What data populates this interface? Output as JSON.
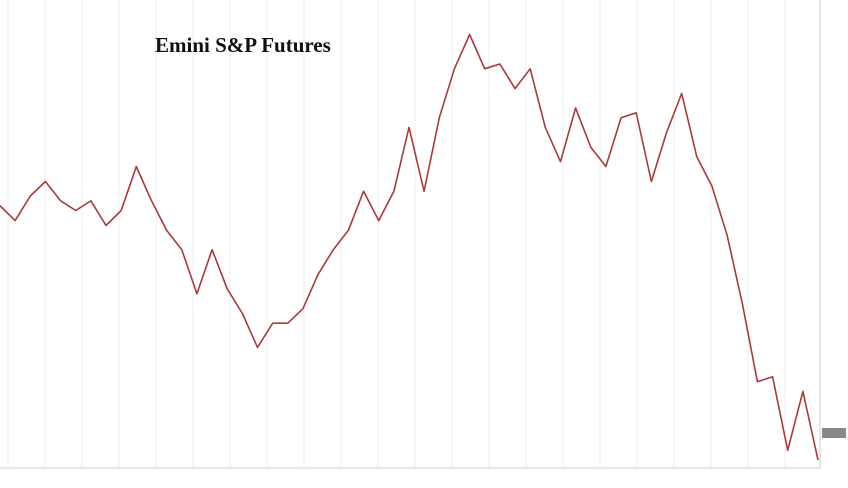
{
  "chart_data": {
    "type": "line",
    "title": "Emini S&P Futures",
    "values": [
      57.8,
      54.4,
      60,
      63.3,
      58.9,
      56.7,
      58.9,
      53.3,
      56.7,
      66.7,
      58.9,
      52.2,
      47.8,
      37.8,
      47.8,
      38.9,
      33.3,
      25.6,
      31.1,
      31.1,
      34.4,
      42.2,
      47.8,
      52.2,
      61.1,
      54.4,
      61.1,
      75.6,
      61.1,
      77.8,
      88.9,
      96.7,
      88.9,
      90,
      84.4,
      88.9,
      75.6,
      67.8,
      80,
      71.1,
      66.7,
      77.8,
      78.9,
      63.3,
      74.4,
      83.3,
      68.9,
      62.2,
      51.1,
      35.6,
      17.8,
      18.9,
      2.2,
      15.6,
      0
    ],
    "color": "#a83a3a",
    "ylim": [
      0,
      100
    ]
  }
}
